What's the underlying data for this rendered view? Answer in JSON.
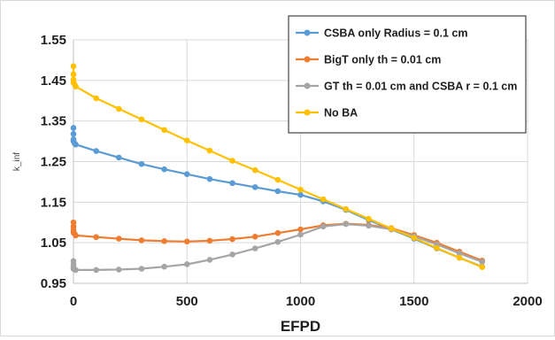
{
  "chart_data": {
    "type": "line",
    "title": "",
    "xlabel": "EFPD",
    "ylabel": "k_inf",
    "xlim": [
      0,
      2000
    ],
    "ylim": [
      0.95,
      1.55
    ],
    "xticks": [
      0,
      500,
      1000,
      1500,
      2000
    ],
    "yticks": [
      0.95,
      1.05,
      1.15,
      1.25,
      1.35,
      1.45,
      1.55
    ],
    "xtick_labels": [
      "0",
      "500",
      "1000",
      "1500",
      "2000"
    ],
    "ytick_labels": [
      "0.95",
      "1.05",
      "1.15",
      "1.25",
      "1.35",
      "1.45",
      "1.55"
    ],
    "grid": true,
    "legend_position": "top-right",
    "series": [
      {
        "name": "CSBA only  Radius = 0.1 cm",
        "color": "#5b9bd5",
        "points": [
          [
            0,
            1.333
          ],
          [
            0,
            1.318
          ],
          [
            0,
            1.305
          ],
          [
            0,
            1.3
          ],
          [
            5,
            1.295
          ],
          [
            10,
            1.292
          ],
          [
            100,
            1.276
          ],
          [
            200,
            1.26
          ],
          [
            300,
            1.244
          ],
          [
            400,
            1.231
          ],
          [
            500,
            1.219
          ],
          [
            600,
            1.207
          ],
          [
            700,
            1.197
          ],
          [
            800,
            1.187
          ],
          [
            900,
            1.177
          ],
          [
            1000,
            1.168
          ],
          [
            1100,
            1.152
          ],
          [
            1200,
            1.131
          ],
          [
            1300,
            1.106
          ],
          [
            1400,
            1.083
          ],
          [
            1500,
            1.06
          ],
          [
            1600,
            1.036
          ],
          [
            1700,
            1.013
          ],
          [
            1800,
            0.991
          ]
        ]
      },
      {
        "name": "BigT only th = 0.01 cm",
        "color": "#ed7d31",
        "points": [
          [
            0,
            1.1
          ],
          [
            0,
            1.09
          ],
          [
            0,
            1.082
          ],
          [
            0,
            1.075
          ],
          [
            5,
            1.072
          ],
          [
            10,
            1.068
          ],
          [
            100,
            1.064
          ],
          [
            200,
            1.06
          ],
          [
            300,
            1.056
          ],
          [
            400,
            1.054
          ],
          [
            500,
            1.053
          ],
          [
            600,
            1.055
          ],
          [
            700,
            1.059
          ],
          [
            800,
            1.065
          ],
          [
            900,
            1.074
          ],
          [
            1000,
            1.083
          ],
          [
            1100,
            1.093
          ],
          [
            1200,
            1.097
          ],
          [
            1300,
            1.094
          ],
          [
            1400,
            1.086
          ],
          [
            1500,
            1.069
          ],
          [
            1600,
            1.05
          ],
          [
            1700,
            1.028
          ],
          [
            1800,
            1.006
          ]
        ]
      },
      {
        "name": "GT th = 0.01 cm and CSBA r = 0.1 cm",
        "color": "#a5a5a5",
        "points": [
          [
            0,
            1.005
          ],
          [
            0,
            0.997
          ],
          [
            0,
            0.99
          ],
          [
            0,
            0.986
          ],
          [
            5,
            0.984
          ],
          [
            10,
            0.983
          ],
          [
            100,
            0.983
          ],
          [
            200,
            0.984
          ],
          [
            300,
            0.986
          ],
          [
            400,
            0.991
          ],
          [
            500,
            0.997
          ],
          [
            600,
            1.008
          ],
          [
            700,
            1.021
          ],
          [
            800,
            1.036
          ],
          [
            900,
            1.052
          ],
          [
            1000,
            1.07
          ],
          [
            1100,
            1.09
          ],
          [
            1200,
            1.096
          ],
          [
            1300,
            1.092
          ],
          [
            1400,
            1.083
          ],
          [
            1500,
            1.066
          ],
          [
            1600,
            1.046
          ],
          [
            1700,
            1.024
          ],
          [
            1800,
            1.003
          ]
        ]
      },
      {
        "name": "No BA",
        "color": "#ffc000",
        "points": [
          [
            0,
            1.485
          ],
          [
            0,
            1.465
          ],
          [
            0,
            1.452
          ],
          [
            0,
            1.445
          ],
          [
            5,
            1.44
          ],
          [
            10,
            1.435
          ],
          [
            100,
            1.406
          ],
          [
            200,
            1.38
          ],
          [
            300,
            1.354
          ],
          [
            400,
            1.328
          ],
          [
            500,
            1.302
          ],
          [
            600,
            1.277
          ],
          [
            700,
            1.252
          ],
          [
            800,
            1.229
          ],
          [
            900,
            1.205
          ],
          [
            1000,
            1.181
          ],
          [
            1100,
            1.157
          ],
          [
            1200,
            1.133
          ],
          [
            1300,
            1.109
          ],
          [
            1400,
            1.085
          ],
          [
            1500,
            1.062
          ],
          [
            1600,
            1.037
          ],
          [
            1700,
            1.013
          ],
          [
            1800,
            0.99
          ]
        ]
      }
    ]
  }
}
